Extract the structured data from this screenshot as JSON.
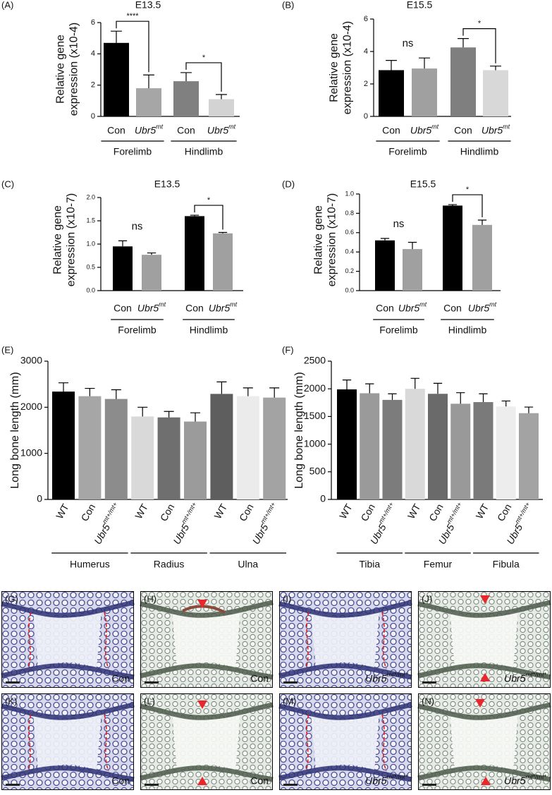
{
  "chart_data": [
    {
      "type": "bar",
      "panel": "(A)",
      "title": "E13.5",
      "y_label": [
        "Relative gene",
        "expression (x10-4)"
      ],
      "categories": [
        "Con",
        "Ubr5",
        "Con",
        "Ubr5"
      ],
      "category_superscripts": [
        null,
        "mt",
        null,
        "mt"
      ],
      "groups": [
        "Forelimb",
        "Hindlimb"
      ],
      "values": [
        4.7,
        1.8,
        2.25,
        1.1
      ],
      "errors": [
        0.75,
        0.85,
        0.55,
        0.3
      ],
      "colors": [
        "#000000",
        "#a6a6a6",
        "#808080",
        "#d3d3d3"
      ],
      "ylim": [
        0,
        6
      ],
      "yticks": [
        0,
        2,
        4,
        6
      ],
      "annotations": [
        "****",
        "*"
      ]
    },
    {
      "type": "bar",
      "panel": "(B)",
      "title": "E15.5",
      "y_label": [
        "Relative gene",
        "expression (x10-4)"
      ],
      "categories": [
        "Con",
        "Ubr5",
        "Con",
        "Ubr5"
      ],
      "category_superscripts": [
        null,
        "mt",
        null,
        "mt"
      ],
      "groups": [
        "Forelimb",
        "Hindlimb"
      ],
      "values": [
        2.85,
        2.95,
        4.25,
        2.85
      ],
      "errors": [
        0.6,
        0.65,
        0.55,
        0.25
      ],
      "colors": [
        "#000000",
        "#a0a0a0",
        "#7f7f7f",
        "#d8d8d8"
      ],
      "ylim": [
        0,
        6
      ],
      "yticks": [
        0,
        2,
        4,
        6
      ],
      "annotations": [
        "ns",
        "*"
      ]
    },
    {
      "type": "bar",
      "panel": "(C)",
      "title": "E13.5",
      "y_label": [
        "Relative gene",
        "expression (x10-7)"
      ],
      "categories": [
        "Con",
        "Ubr5",
        "Con",
        "Ubr5"
      ],
      "category_superscripts": [
        null,
        "mt",
        null,
        "mt"
      ],
      "groups": [
        "Forelimb",
        "Hindlimb"
      ],
      "values": [
        0.95,
        0.77,
        1.6,
        1.23
      ],
      "errors": [
        0.12,
        0.04,
        0.02,
        0.02
      ],
      "colors": [
        "#000000",
        "#a0a0a0",
        "#000000",
        "#a0a0a0"
      ],
      "ylim": [
        0,
        2
      ],
      "yticks": [
        {
          "value": 0,
          "label": "0.0"
        },
        0.5,
        {
          "value": 1,
          "label": "1.0"
        },
        1.5,
        {
          "value": 2,
          "label": "2.0"
        }
      ],
      "annotations": [
        "ns",
        "*"
      ]
    },
    {
      "type": "bar",
      "panel": "(D)",
      "title": "E15.5",
      "y_label": [
        "Relative gene",
        "expression (x10-7)"
      ],
      "categories": [
        "Con",
        "Ubr5",
        "Con",
        "Ubr5"
      ],
      "category_superscripts": [
        null,
        "mt",
        null,
        "mt"
      ],
      "groups": [
        "Forelimb",
        "Hindlimb"
      ],
      "values": [
        0.52,
        0.43,
        0.88,
        0.68
      ],
      "errors": [
        0.02,
        0.07,
        0.01,
        0.05
      ],
      "colors": [
        "#000000",
        "#a0a0a0",
        "#000000",
        "#a0a0a0"
      ],
      "ylim": [
        0,
        1
      ],
      "yticks": [
        {
          "value": 0,
          "label": "0.0"
        },
        0.2,
        0.4,
        0.6,
        0.8,
        {
          "value": 1,
          "label": "1.0"
        }
      ],
      "annotations": [
        "ns",
        "*"
      ]
    },
    {
      "type": "bar",
      "panel": "(E)",
      "y_label": [
        "Long bone length (mm)"
      ],
      "categories": [
        "WT",
        "Con",
        "Ubr5",
        "WT",
        "Con",
        "Ubr5",
        "WT",
        "Con",
        "Ubr5"
      ],
      "category_superscripts": [
        null,
        null,
        "mt+/mt+",
        null,
        null,
        "mt+/mt+",
        null,
        null,
        "mt+/mt+"
      ],
      "groups": [
        "Humerus",
        "Radius",
        "Ulna"
      ],
      "values": [
        2340,
        2240,
        2180,
        1800,
        1780,
        1690,
        2290,
        2240,
        2210
      ],
      "errors": [
        190,
        170,
        200,
        200,
        130,
        190,
        260,
        180,
        210
      ],
      "colors": [
        "#000000",
        "#a6a6a6",
        "#8c8c8c",
        "#d9d9d9",
        "#6f6f6f",
        "#9b9b9b",
        "#5e5e5e",
        "#ebebeb",
        "#a3a3a3"
      ],
      "ylim": [
        0,
        3000
      ],
      "yticks": [
        0,
        1000,
        2000,
        3000
      ]
    },
    {
      "type": "bar",
      "panel": "(F)",
      "y_label": [
        "Long bone length (mm)"
      ],
      "categories": [
        "WT",
        "Con",
        "Ubr5",
        "WT",
        "Con",
        "Ubr5",
        "WT",
        "Con",
        "Ubr5"
      ],
      "category_superscripts": [
        null,
        null,
        "mt+/mt+",
        null,
        null,
        "mt+/mt+",
        null,
        null,
        "mt+/mt+"
      ],
      "groups": [
        "Tibia",
        "Femur",
        "Fibula"
      ],
      "values": [
        1990,
        1920,
        1800,
        2000,
        1910,
        1730,
        1760,
        1680,
        1560
      ],
      "errors": [
        170,
        170,
        110,
        190,
        190,
        200,
        150,
        100,
        110
      ],
      "colors": [
        "#000000",
        "#9a9a9a",
        "#7c7c7c",
        "#d9d9d9",
        "#6a6a6a",
        "#999999",
        "#7a7a7a",
        "#ededed",
        "#a3a3a3"
      ],
      "ylim": [
        0,
        2500
      ],
      "yticks": [
        0,
        500,
        1000,
        1500,
        2000,
        2500
      ]
    }
  ],
  "images": [
    {
      "label": "(G)",
      "caption": "Con",
      "caption_superscript": null
    },
    {
      "label": "(H)",
      "caption": "Con",
      "caption_superscript": null
    },
    {
      "label": "(I)",
      "caption": "Ubr5",
      "caption_superscript": "mt*/mt*"
    },
    {
      "label": "(J)",
      "caption": "Ubr5",
      "caption_superscript": "mt*/mt*"
    },
    {
      "label": "(K)",
      "caption": "Con",
      "caption_superscript": null
    },
    {
      "label": "(L)",
      "caption": "Con",
      "caption_superscript": null
    },
    {
      "label": "(M)",
      "caption": "Ubr5",
      "caption_superscript": "mt*/mt*"
    },
    {
      "label": "(N)",
      "caption": "Ubr5",
      "caption_superscript": "mt*/mt*"
    }
  ]
}
